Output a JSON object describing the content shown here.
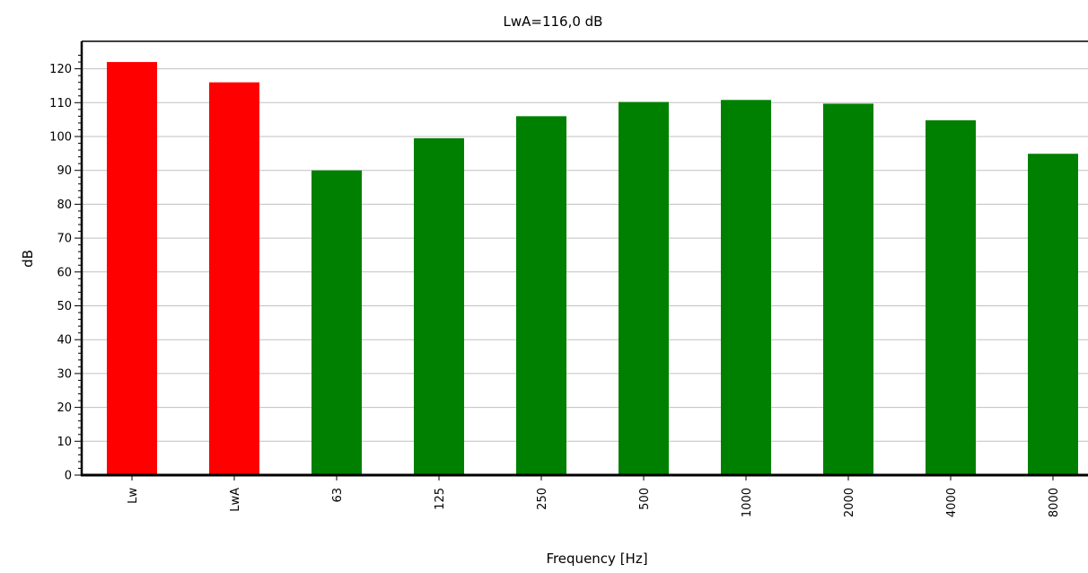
{
  "chart_data": {
    "type": "bar",
    "title": "LwA=116,0 dB",
    "xlabel": "Frequency [Hz]",
    "ylabel": "dB",
    "ylim": [
      0,
      125
    ],
    "y_ticks": [
      "0",
      "10",
      "20",
      "30",
      "40",
      "50",
      "60",
      "70",
      "80",
      "90",
      "100",
      "110",
      "120"
    ],
    "categories": [
      "Lw",
      "LwA",
      "63",
      "125",
      "250",
      "500",
      "1000",
      "2000",
      "4000",
      "8000"
    ],
    "values": [
      122.0,
      116.0,
      90.0,
      99.5,
      106.0,
      110.2,
      110.8,
      109.7,
      104.8,
      94.9
    ],
    "bar_colors": [
      "#ff0000",
      "#ff0000",
      "#008000",
      "#008000",
      "#008000",
      "#008000",
      "#008000",
      "#008000",
      "#008000",
      "#008000"
    ],
    "grid": true,
    "gridline_color": "#c0c0c0",
    "legend": "none"
  }
}
